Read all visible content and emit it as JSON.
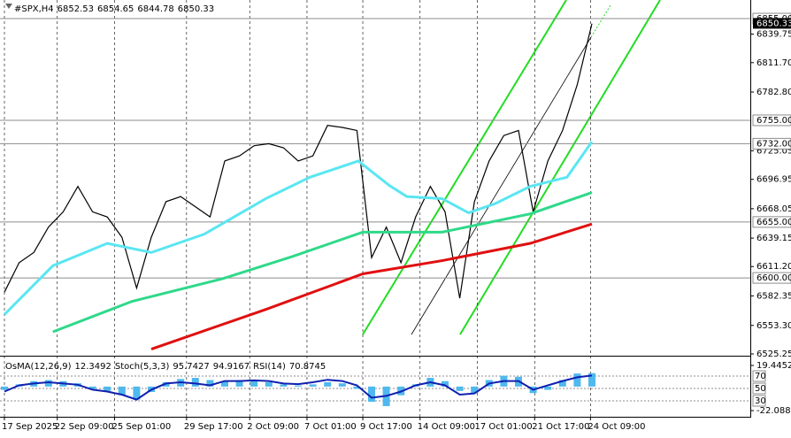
{
  "chart_data": {
    "type": "line",
    "title": "#SPX,H4",
    "last": {
      "open": 6852.53,
      "high": 6854.65,
      "low": 6844.78,
      "close": 6850.33
    },
    "ylim": [
      6525.25,
      6873.3
    ],
    "yticks": [
      6839.75,
      {
        "value": 6811.7,
        "label": "6811.70"
      },
      {
        "value": 6782.8,
        "label": "6782.80"
      },
      6725.05,
      6696.95,
      6668.05,
      6639.15,
      {
        "value": 6611.2,
        "label": "6611.20"
      },
      6582.35,
      {
        "value": 6553.3,
        "label": "6553.30"
      },
      6525.25
    ],
    "levels": [
      {
        "value": 6855,
        "label": "6855.00"
      },
      {
        "value": 6755,
        "label": "6755.00"
      },
      {
        "value": 6732,
        "label": "6732.00"
      },
      {
        "value": 6655,
        "label": "6655.00"
      },
      {
        "value": 6600,
        "label": "6600.00"
      }
    ],
    "xlim": [
      0,
      40
    ],
    "xticks": [
      {
        "value": 0,
        "label": "17 Sep 2025"
      },
      {
        "value": 3.6,
        "label": "22 Sep 09:00"
      },
      {
        "value": 7.5,
        "label": "25 Sep 01:00"
      },
      {
        "value": 12.4,
        "label": "29 Sep 17:00"
      },
      {
        "value": 16.7,
        "label": "2 Oct 09:00"
      },
      {
        "value": 20.6,
        "label": "7 Oct 01:00"
      },
      {
        "value": 24.4,
        "label": "9 Oct 17:00"
      },
      {
        "value": 28.3,
        "label": "14 Oct 09:00"
      },
      {
        "value": 32.2,
        "label": "17 Oct 01:00"
      },
      {
        "value": 36.1,
        "label": "21 Oct 17:00"
      },
      {
        "value": 39.9,
        "label": "24 Oct 09:00"
      }
    ],
    "grid": true,
    "series": [
      {
        "color": "#000000",
        "x": [
          0,
          1,
          2,
          3,
          4,
          5,
          6,
          7,
          8,
          9,
          10,
          11,
          12,
          13,
          14,
          15,
          16,
          17,
          18,
          19,
          20,
          21,
          22,
          23,
          24,
          25,
          26,
          27,
          28,
          29,
          30,
          31,
          32,
          33,
          34,
          35,
          36,
          37,
          38,
          39,
          40
        ],
        "values": [
          6586,
          6615,
          6625,
          6650,
          6665,
          6690,
          6665,
          6660,
          6640,
          6590,
          6640,
          6675,
          6680,
          6670,
          6660,
          6715,
          6720,
          6730,
          6732,
          6728,
          6715,
          6720,
          6750,
          6748,
          6745,
          6620,
          6650,
          6615,
          6660,
          6690,
          6665,
          6580,
          6675,
          6715,
          6740,
          6745,
          6665,
          6715,
          6745,
          6790,
          6850
        ]
      },
      {
        "color": "#5ae6f2",
        "x": [
          0,
          3.3,
          7,
          10,
          13.6,
          17.8,
          20.8,
          24.1,
          26.2,
          27.4,
          29.8,
          31.6,
          33.4,
          35.8,
          38.3,
          40
        ],
        "values": [
          6564,
          6612,
          6634,
          6625,
          6643,
          6678,
          6699,
          6715,
          6691,
          6680,
          6678,
          6664,
          6673,
          6690,
          6699,
          6734
        ]
      },
      {
        "color": "#2fd98a",
        "x": [
          3.3,
          8.7,
          14.8,
          19.6,
          24.4,
          29.8,
          35.8,
          40
        ],
        "values": [
          6547,
          6577,
          6599,
          6621,
          6645,
          6645,
          6663,
          6684
        ]
      },
      {
        "color": "#e01010",
        "x": [
          10,
          17.8,
          24.4,
          29.8,
          35.8,
          40
        ],
        "values": [
          6530,
          6569,
          6604,
          6617,
          6634,
          6653
        ]
      }
    ],
    "indicator": {
      "osma_name": "OsMA(12,26,9)",
      "stoch_name": "Stoch(5,3,3)",
      "stoch_main": 95.7427,
      "stoch_signal": 94.9167,
      "rsi_name": "RSI(14)",
      "ylim": [
        -22.0885,
        19.4452
      ],
      "yticks": [
        19.4452,
        -22.0885
      ],
      "y2lim": [
        0,
        100
      ],
      "y2ticks": [
        70,
        50,
        30
      ],
      "osma": {
        "color": "#4fb8ee",
        "values": [
          -3,
          2,
          5,
          6,
          5,
          3,
          -2,
          -4,
          -8,
          -12,
          -5,
          4,
          7,
          8,
          6,
          5,
          6,
          5,
          4,
          2,
          1,
          2,
          4,
          3,
          -2,
          -14,
          -18,
          -8,
          2,
          8,
          5,
          -4,
          -6,
          6,
          10,
          9,
          -6,
          -3,
          6,
          12,
          12.3492
        ]
      },
      "rsi": {
        "color": "#1020b0",
        "axis": "y2",
        "values": [
          45,
          55,
          58,
          60,
          58,
          56,
          48,
          45,
          40,
          32,
          48,
          58,
          60,
          58,
          55,
          62,
          62,
          63,
          62,
          58,
          57,
          60,
          64,
          62,
          55,
          35,
          38,
          45,
          55,
          60,
          55,
          40,
          42,
          58,
          62,
          62,
          48,
          55,
          62,
          68,
          70.8745
        ]
      }
    }
  }
}
